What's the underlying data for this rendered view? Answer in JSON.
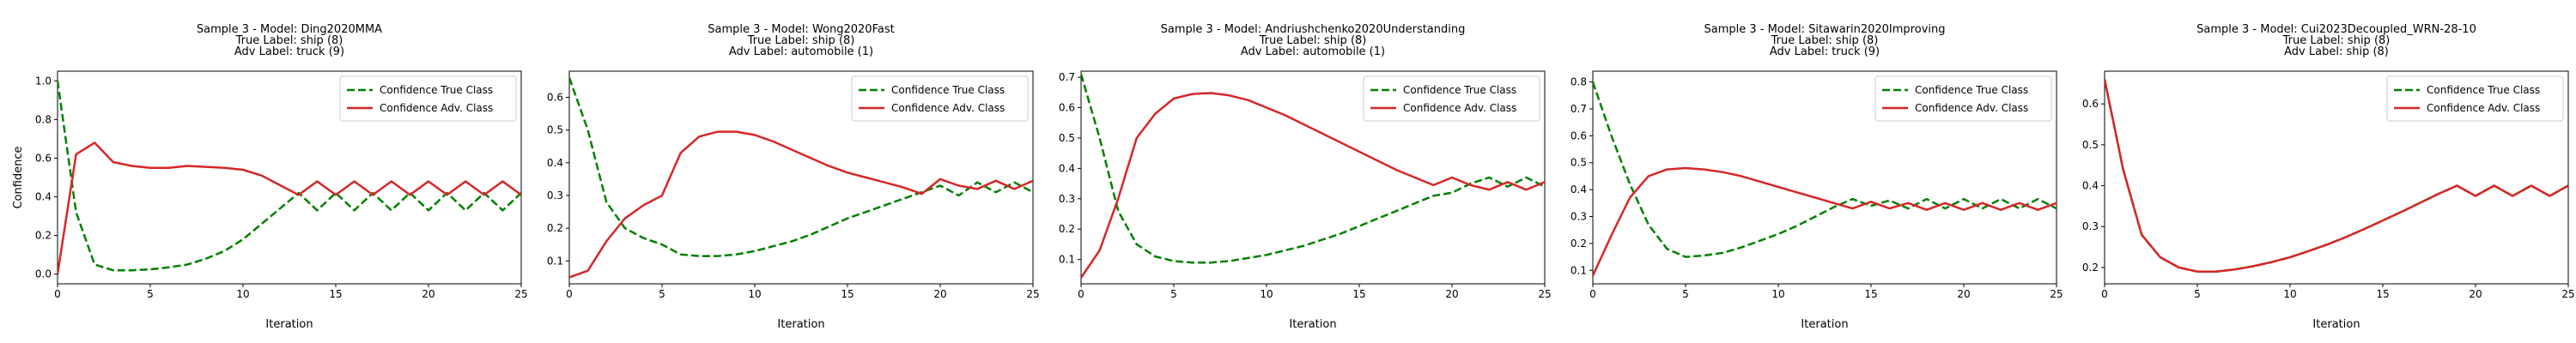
{
  "figure": {
    "series_styles": {
      "true_class": {
        "color": "#008000",
        "dash": "dashed"
      },
      "adv_class": {
        "color": "#d62728",
        "dash": "solid"
      }
    }
  },
  "chart_data": [
    {
      "type": "line",
      "title": [
        "Sample 3 - Model: Ding2020MMA",
        "True Label: ship (8)",
        "Adv Label: truck (9)"
      ],
      "xlabel": "Iteration",
      "ylabel": "Confidence",
      "xlim": [
        0,
        25
      ],
      "ylim": [
        -0.05,
        1.05
      ],
      "xticks": [
        0,
        5,
        10,
        15,
        20,
        25
      ],
      "yticks": [
        0.0,
        0.2,
        0.4,
        0.6,
        0.8,
        1.0
      ],
      "ytick_labels": [
        "0.0",
        "0.2",
        "0.4",
        "0.6",
        "0.8",
        "1.0"
      ],
      "legend": "upper right",
      "x": [
        0,
        1,
        2,
        3,
        4,
        5,
        6,
        7,
        8,
        9,
        10,
        11,
        12,
        13,
        14,
        15,
        16,
        17,
        18,
        19,
        20,
        21,
        22,
        23,
        24,
        25
      ],
      "series": [
        {
          "name": "Confidence True Class",
          "style": "true_class",
          "values": [
            1.0,
            0.32,
            0.05,
            0.02,
            0.02,
            0.025,
            0.035,
            0.05,
            0.08,
            0.12,
            0.18,
            0.26,
            0.34,
            0.42,
            0.33,
            0.42,
            0.33,
            0.42,
            0.33,
            0.42,
            0.33,
            0.42,
            0.33,
            0.42,
            0.33,
            0.42
          ]
        },
        {
          "name": "Confidence Adv. Class",
          "style": "adv_class",
          "values": [
            0.0,
            0.62,
            0.68,
            0.58,
            0.56,
            0.55,
            0.55,
            0.56,
            0.555,
            0.55,
            0.54,
            0.51,
            0.46,
            0.41,
            0.48,
            0.41,
            0.48,
            0.41,
            0.48,
            0.41,
            0.48,
            0.41,
            0.48,
            0.41,
            0.48,
            0.41
          ]
        }
      ]
    },
    {
      "type": "line",
      "title": [
        "Sample 3 - Model: Wong2020Fast",
        "True Label: ship (8)",
        "Adv Label: automobile (1)"
      ],
      "xlabel": "Iteration",
      "ylabel": "",
      "xlim": [
        0,
        25
      ],
      "ylim": [
        0.03,
        0.68
      ],
      "xticks": [
        0,
        5,
        10,
        15,
        20,
        25
      ],
      "yticks": [
        0.1,
        0.2,
        0.3,
        0.4,
        0.5,
        0.6
      ],
      "ytick_labels": [
        "0.1",
        "0.2",
        "0.3",
        "0.4",
        "0.5",
        "0.6"
      ],
      "legend": "upper right",
      "x": [
        0,
        1,
        2,
        3,
        4,
        5,
        6,
        7,
        8,
        9,
        10,
        11,
        12,
        13,
        14,
        15,
        16,
        17,
        18,
        19,
        20,
        21,
        22,
        23,
        24,
        25
      ],
      "series": [
        {
          "name": "Confidence True Class",
          "style": "true_class",
          "values": [
            0.66,
            0.5,
            0.28,
            0.2,
            0.17,
            0.15,
            0.12,
            0.115,
            0.115,
            0.12,
            0.13,
            0.145,
            0.16,
            0.18,
            0.205,
            0.23,
            0.25,
            0.27,
            0.29,
            0.31,
            0.33,
            0.3,
            0.34,
            0.31,
            0.34,
            0.31
          ]
        },
        {
          "name": "Confidence Adv. Class",
          "style": "adv_class",
          "values": [
            0.05,
            0.07,
            0.16,
            0.23,
            0.27,
            0.3,
            0.43,
            0.48,
            0.495,
            0.495,
            0.485,
            0.465,
            0.44,
            0.415,
            0.39,
            0.37,
            0.355,
            0.34,
            0.325,
            0.305,
            0.35,
            0.33,
            0.32,
            0.345,
            0.32,
            0.345
          ]
        }
      ]
    },
    {
      "type": "line",
      "title": [
        "Sample 3 - Model: Andriushchenko2020Understanding",
        "True Label: ship (8)",
        "Adv Label: automobile (1)"
      ],
      "xlabel": "Iteration",
      "ylabel": "",
      "xlim": [
        0,
        25
      ],
      "ylim": [
        0.02,
        0.72
      ],
      "xticks": [
        0,
        5,
        10,
        15,
        20,
        25
      ],
      "yticks": [
        0.1,
        0.2,
        0.3,
        0.4,
        0.5,
        0.6,
        0.7
      ],
      "ytick_labels": [
        "0.1",
        "0.2",
        "0.3",
        "0.4",
        "0.5",
        "0.6",
        "0.7"
      ],
      "legend": "upper right",
      "x": [
        0,
        1,
        2,
        3,
        4,
        5,
        6,
        7,
        8,
        9,
        10,
        11,
        12,
        13,
        14,
        15,
        16,
        17,
        18,
        19,
        20,
        21,
        22,
        23,
        24,
        25
      ],
      "series": [
        {
          "name": "Confidence True Class",
          "style": "true_class",
          "values": [
            0.71,
            0.5,
            0.26,
            0.15,
            0.11,
            0.095,
            0.09,
            0.09,
            0.095,
            0.105,
            0.115,
            0.13,
            0.145,
            0.165,
            0.185,
            0.21,
            0.235,
            0.26,
            0.285,
            0.31,
            0.32,
            0.35,
            0.37,
            0.34,
            0.37,
            0.34
          ]
        },
        {
          "name": "Confidence Adv. Class",
          "style": "adv_class",
          "values": [
            0.04,
            0.13,
            0.3,
            0.5,
            0.58,
            0.63,
            0.645,
            0.648,
            0.64,
            0.625,
            0.6,
            0.575,
            0.545,
            0.515,
            0.485,
            0.455,
            0.425,
            0.395,
            0.37,
            0.345,
            0.37,
            0.345,
            0.33,
            0.355,
            0.33,
            0.355
          ]
        }
      ]
    },
    {
      "type": "line",
      "title": [
        "Sample 3 - Model: Sitawarin2020Improving",
        "True Label: ship (8)",
        "Adv Label: truck (9)"
      ],
      "xlabel": "Iteration",
      "ylabel": "",
      "xlim": [
        0,
        25
      ],
      "ylim": [
        0.05,
        0.84
      ],
      "xticks": [
        0,
        5,
        10,
        15,
        20,
        25
      ],
      "yticks": [
        0.1,
        0.2,
        0.3,
        0.4,
        0.5,
        0.6,
        0.7,
        0.8
      ],
      "ytick_labels": [
        "0.1",
        "0.2",
        "0.3",
        "0.4",
        "0.5",
        "0.6",
        "0.7",
        "0.8"
      ],
      "legend": "upper right",
      "x": [
        0,
        1,
        2,
        3,
        4,
        5,
        6,
        7,
        8,
        9,
        10,
        11,
        12,
        13,
        14,
        15,
        16,
        17,
        18,
        19,
        20,
        21,
        22,
        23,
        24,
        25
      ],
      "series": [
        {
          "name": "Confidence True Class",
          "style": "true_class",
          "values": [
            0.8,
            0.6,
            0.42,
            0.27,
            0.18,
            0.15,
            0.155,
            0.165,
            0.185,
            0.21,
            0.235,
            0.265,
            0.3,
            0.335,
            0.365,
            0.34,
            0.36,
            0.33,
            0.365,
            0.33,
            0.365,
            0.33,
            0.365,
            0.33,
            0.365,
            0.33
          ]
        },
        {
          "name": "Confidence Adv. Class",
          "style": "adv_class",
          "values": [
            0.08,
            0.23,
            0.37,
            0.45,
            0.475,
            0.48,
            0.475,
            0.465,
            0.45,
            0.43,
            0.41,
            0.39,
            0.37,
            0.35,
            0.33,
            0.355,
            0.33,
            0.35,
            0.325,
            0.35,
            0.325,
            0.35,
            0.325,
            0.35,
            0.325,
            0.35
          ]
        }
      ]
    },
    {
      "type": "line",
      "title": [
        "Sample 3 - Model: Cui2023Decoupled_WRN-28-10",
        "True Label: ship (8)",
        "Adv Label: ship (8)"
      ],
      "xlabel": "Iteration",
      "ylabel": "",
      "xlim": [
        0,
        25
      ],
      "ylim": [
        0.16,
        0.68
      ],
      "xticks": [
        0,
        5,
        10,
        15,
        20,
        25
      ],
      "yticks": [
        0.2,
        0.3,
        0.4,
        0.5,
        0.6
      ],
      "ytick_labels": [
        "0.2",
        "0.3",
        "0.4",
        "0.5",
        "0.6"
      ],
      "legend": "upper right",
      "x": [
        0,
        1,
        2,
        3,
        4,
        5,
        6,
        7,
        8,
        9,
        10,
        11,
        12,
        13,
        14,
        15,
        16,
        17,
        18,
        19,
        20,
        21,
        22,
        23,
        24,
        25
      ],
      "series": [
        {
          "name": "Confidence True Class",
          "style": "true_class",
          "values": [
            0.66,
            0.44,
            0.28,
            0.225,
            0.2,
            0.19,
            0.19,
            0.195,
            0.203,
            0.213,
            0.225,
            0.24,
            0.256,
            0.274,
            0.294,
            0.315,
            0.336,
            0.358,
            0.38,
            0.4,
            0.375,
            0.4,
            0.375,
            0.4,
            0.375,
            0.4
          ]
        },
        {
          "name": "Confidence Adv. Class",
          "style": "adv_class",
          "values": [
            0.66,
            0.44,
            0.28,
            0.225,
            0.2,
            0.19,
            0.19,
            0.195,
            0.203,
            0.213,
            0.225,
            0.24,
            0.256,
            0.274,
            0.294,
            0.315,
            0.336,
            0.358,
            0.38,
            0.4,
            0.375,
            0.4,
            0.375,
            0.4,
            0.375,
            0.4
          ]
        }
      ]
    }
  ]
}
